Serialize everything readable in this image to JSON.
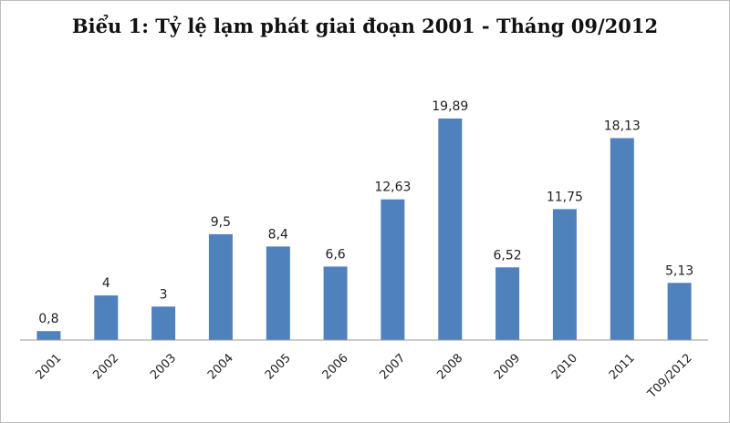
{
  "chart_data": {
    "type": "bar",
    "title": "Biểu 1: Tỷ lệ lạm phát giai đoạn 2001 - Tháng 09/2012",
    "categories": [
      "2001",
      "2002",
      "2003",
      "2004",
      "2005",
      "2006",
      "2007",
      "2008",
      "2009",
      "2010",
      "2011",
      "T09/2012"
    ],
    "values": [
      0.8,
      4,
      3,
      9.5,
      8.4,
      6.6,
      12.63,
      19.89,
      6.52,
      11.75,
      18.13,
      5.13
    ],
    "data_labels": [
      "0,8",
      "4",
      "3",
      "9,5",
      "8,4",
      "6,6",
      "12,63",
      "19,89",
      "6,52",
      "11,75",
      "18,13",
      "5,13"
    ],
    "xlabel": "",
    "ylabel": "",
    "ylim": [
      0,
      20
    ],
    "grid": false,
    "bar_color": "#4f81bd"
  }
}
